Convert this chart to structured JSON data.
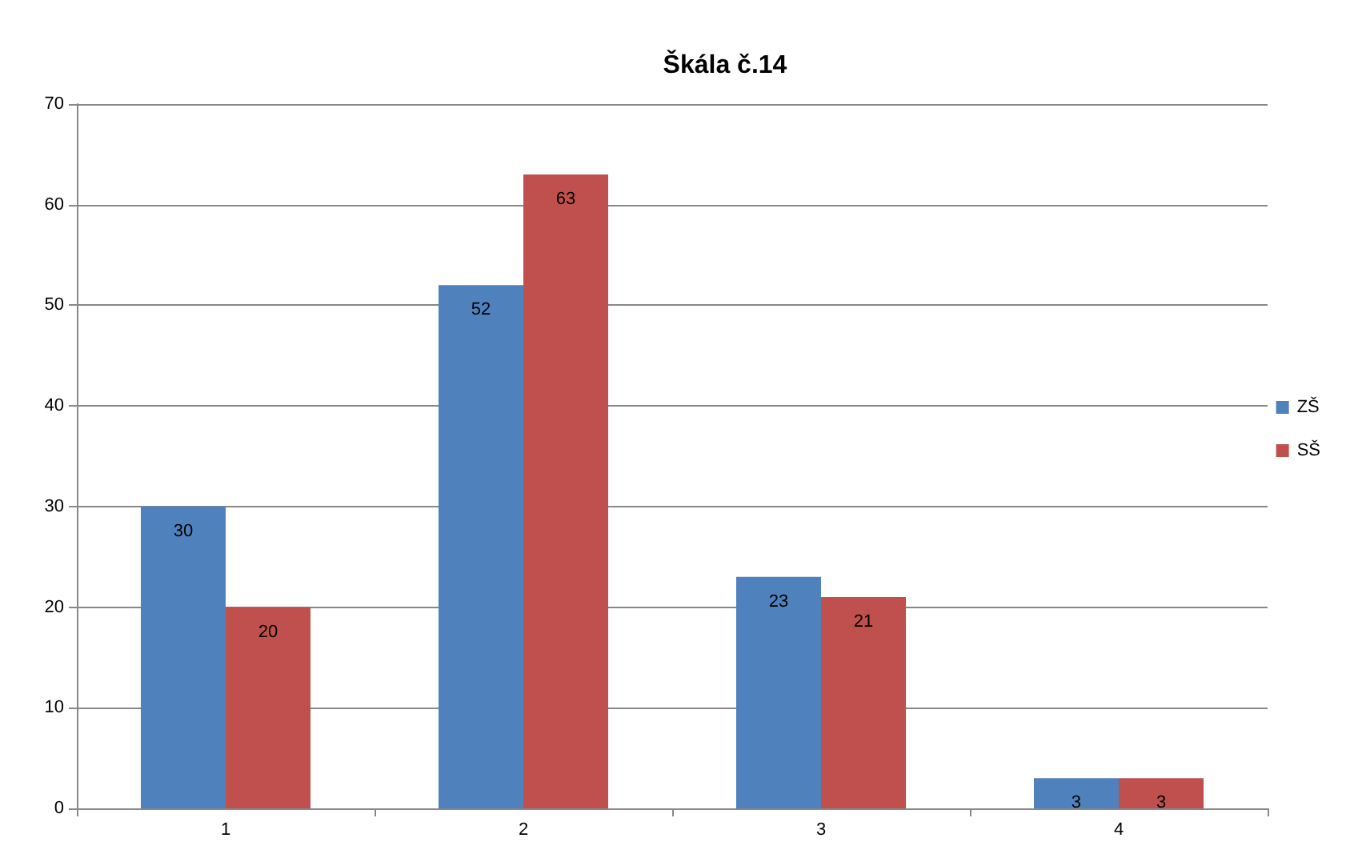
{
  "chart_data": {
    "type": "bar",
    "title": "Škála č.14",
    "categories": [
      "1",
      "2",
      "3",
      "4"
    ],
    "series": [
      {
        "name": "ZŠ",
        "color": "#4f81bd",
        "values": [
          30,
          52,
          23,
          3
        ]
      },
      {
        "name": "SŠ",
        "color": "#c0504d",
        "values": [
          20,
          63,
          21,
          3
        ]
      }
    ],
    "ylim": [
      0,
      70
    ],
    "yticks": [
      0,
      10,
      20,
      30,
      40,
      50,
      60,
      70
    ],
    "grid": "y",
    "legend": "right",
    "data_labels": true
  }
}
